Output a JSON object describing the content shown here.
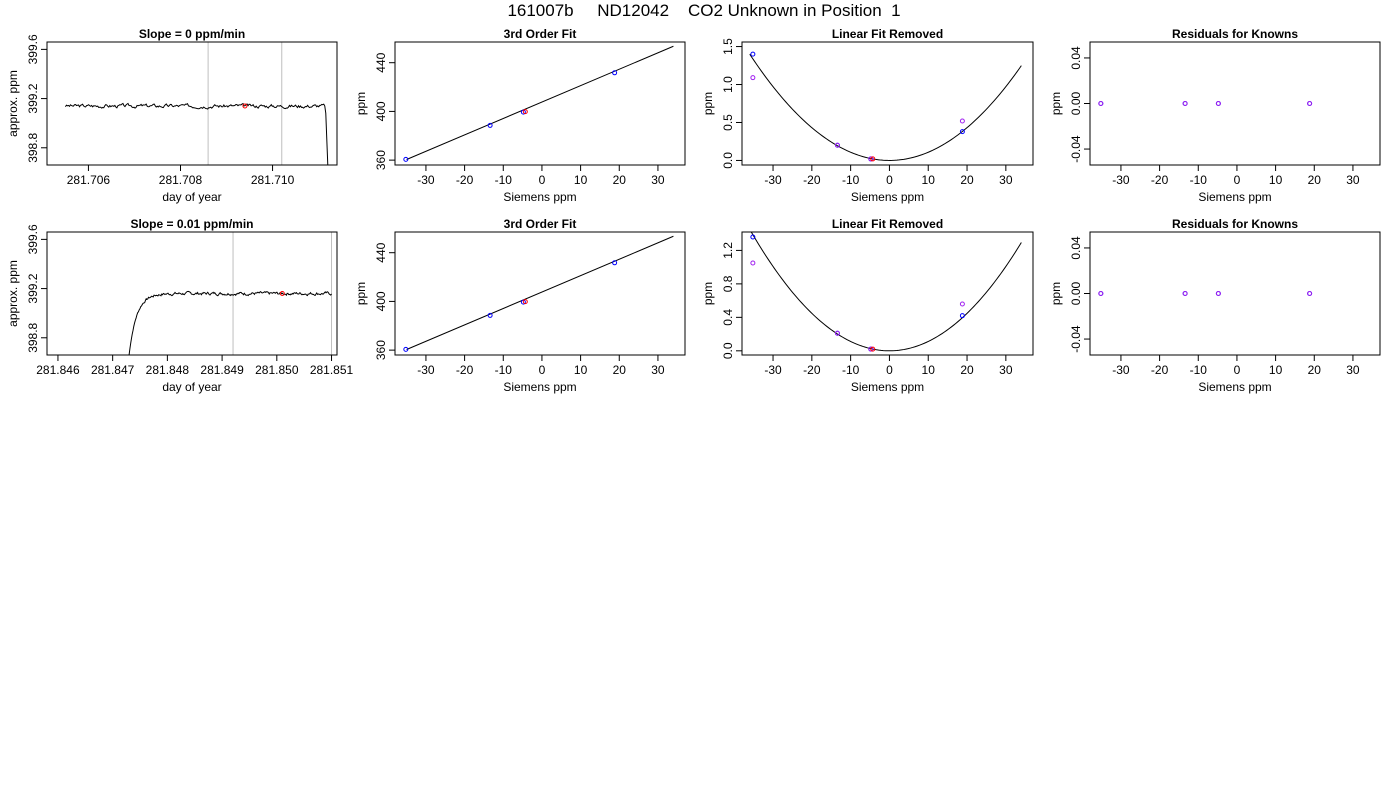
{
  "figure": {
    "title": "161007b     ND12042    CO2 Unknown in Position  1"
  },
  "chart_data": [
    {
      "type": "line",
      "title": "Slope =  0  ppm/min",
      "xlabel": "day of year",
      "ylabel": "approx. ppm",
      "xlim": [
        281.7051,
        281.7114
      ],
      "ylim": [
        398.66,
        399.66
      ],
      "xticks": [
        281.706,
        281.708,
        281.71
      ],
      "xtick_labels": [
        "281.706",
        "281.708",
        "281.710"
      ],
      "yticks": [
        398.8,
        399.2,
        399.6
      ],
      "ytick_labels": [
        "398.8",
        "399.2",
        "399.6"
      ],
      "vlines": [
        281.7086,
        281.7102
      ],
      "series": [
        {
          "name": "",
          "color": "#000000",
          "trace": {
            "start": 281.7055,
            "end": 281.7112,
            "level": 399.14,
            "noise": 0.012,
            "seed": 3,
            "drop_at": 281.71115,
            "drop_to": 398.66
          }
        }
      ],
      "marker": {
        "x": 281.7094,
        "y": 399.14,
        "color": "#ff0000"
      }
    },
    {
      "type": "scatter",
      "title": "3rd Order Fit",
      "xlabel": "Siemens ppm",
      "ylabel": "ppm",
      "xlim": [
        -38,
        37
      ],
      "ylim": [
        356,
        457
      ],
      "xticks": [
        -30,
        -20,
        -10,
        0,
        10,
        20,
        30
      ],
      "xtick_labels": [
        "-30",
        "-20",
        "-10",
        "0",
        "10",
        "20",
        "30"
      ],
      "yticks": [
        360,
        400,
        440
      ],
      "ytick_labels": [
        "360",
        "400",
        "440"
      ],
      "fit_line": {
        "x": [
          -35,
          34
        ],
        "y": [
          360.5,
          453.5
        ]
      },
      "points": [
        {
          "x": -35.2,
          "y": 360.6,
          "color": "#0000ff"
        },
        {
          "x": -13.4,
          "y": 388.5,
          "color": "#0000ff"
        },
        {
          "x": -4.8,
          "y": 399.4,
          "color": "#0000ff"
        },
        {
          "x": 18.8,
          "y": 431.7,
          "color": "#0000ff"
        },
        {
          "x": -4.3,
          "y": 399.8,
          "color": "#ff0000"
        }
      ]
    },
    {
      "type": "scatter",
      "title": "Linear Fit Removed",
      "xlabel": "Siemens ppm",
      "ylabel": "ppm",
      "xlim": [
        -38,
        37
      ],
      "ylim": [
        -0.06,
        1.56
      ],
      "xticks": [
        -30,
        -20,
        -10,
        0,
        10,
        20,
        30
      ],
      "xtick_labels": [
        "-30",
        "-20",
        "-10",
        "0",
        "10",
        "20",
        "30"
      ],
      "yticks": [
        0,
        0.5,
        1,
        1.5
      ],
      "ytick_labels": [
        "0.0",
        "0.5",
        "1.0",
        "1.5"
      ],
      "curve": {
        "a": 0.00108,
        "x0": 0,
        "c": 0.0,
        "from": -36,
        "to": 34
      },
      "points": [
        {
          "x": -35.2,
          "y": 1.4,
          "color": "#0000ff"
        },
        {
          "x": -13.4,
          "y": 0.2,
          "color": "#0000ff"
        },
        {
          "x": -4.8,
          "y": 0.02,
          "color": "#0000ff"
        },
        {
          "x": 18.8,
          "y": 0.38,
          "color": "#0000ff"
        },
        {
          "x": -35.2,
          "y": 1.09,
          "color": "#a020f0"
        },
        {
          "x": -13.4,
          "y": 0.2,
          "color": "#a020f0"
        },
        {
          "x": -4.8,
          "y": 0.02,
          "color": "#a020f0"
        },
        {
          "x": 18.8,
          "y": 0.52,
          "color": "#a020f0"
        },
        {
          "x": -4.3,
          "y": 0.02,
          "color": "#ff0000"
        }
      ]
    },
    {
      "type": "scatter",
      "title": "Residuals for Knowns",
      "xlabel": "Siemens ppm",
      "ylabel": "ppm",
      "xlim": [
        -38,
        37
      ],
      "ylim": [
        -0.054,
        0.054
      ],
      "xticks": [
        -30,
        -20,
        -10,
        0,
        10,
        20,
        30
      ],
      "xtick_labels": [
        "-30",
        "-20",
        "-10",
        "0",
        "10",
        "20",
        "30"
      ],
      "yticks": [
        -0.04,
        0,
        0.04
      ],
      "ytick_labels": [
        "-0.04",
        "0.00",
        "0.04"
      ],
      "points": [
        {
          "x": -35.2,
          "y": 0,
          "color": "#0000ff"
        },
        {
          "x": -13.4,
          "y": 0,
          "color": "#0000ff"
        },
        {
          "x": -4.8,
          "y": 0,
          "color": "#0000ff"
        },
        {
          "x": 18.8,
          "y": 0,
          "color": "#0000ff"
        },
        {
          "x": -35.2,
          "y": 0,
          "color": "#a020f0"
        },
        {
          "x": -13.4,
          "y": 0,
          "color": "#a020f0"
        },
        {
          "x": -4.8,
          "y": 0,
          "color": "#a020f0"
        },
        {
          "x": 18.8,
          "y": 0,
          "color": "#a020f0"
        }
      ]
    },
    {
      "type": "line",
      "title": "Slope =  0.01  ppm/min",
      "xlabel": "day of year",
      "ylabel": "approx. ppm",
      "xlim": [
        281.8458,
        281.8511
      ],
      "ylim": [
        398.66,
        399.66
      ],
      "xticks": [
        281.846,
        281.847,
        281.848,
        281.849,
        281.85,
        281.851
      ],
      "xtick_labels": [
        "281.846",
        "281.847",
        "281.848",
        "281.849",
        "281.850",
        "281.851"
      ],
      "yticks": [
        398.8,
        399.2,
        399.6
      ],
      "ytick_labels": [
        "398.8",
        "399.2",
        "399.6"
      ],
      "vlines": [
        281.8492,
        281.851
      ],
      "series": [
        {
          "name": "",
          "color": "#000000",
          "trace": {
            "start": 281.8473,
            "end": 281.851,
            "level": 399.16,
            "noise": 0.01,
            "seed": 7,
            "rise_from": 398.66,
            "rise_time": 0.00055
          }
        }
      ],
      "marker": {
        "x": 281.8501,
        "y": 399.16,
        "color": "#ff0000"
      }
    },
    {
      "type": "scatter",
      "title": "3rd Order Fit",
      "xlabel": "Siemens ppm",
      "ylabel": "ppm",
      "xlim": [
        -38,
        37
      ],
      "ylim": [
        356,
        457
      ],
      "xticks": [
        -30,
        -20,
        -10,
        0,
        10,
        20,
        30
      ],
      "xtick_labels": [
        "-30",
        "-20",
        "-10",
        "0",
        "10",
        "20",
        "30"
      ],
      "yticks": [
        360,
        400,
        440
      ],
      "ytick_labels": [
        "360",
        "400",
        "440"
      ],
      "fit_line": {
        "x": [
          -35,
          34
        ],
        "y": [
          360.5,
          453.5
        ]
      },
      "points": [
        {
          "x": -35.2,
          "y": 360.6,
          "color": "#0000ff"
        },
        {
          "x": -13.4,
          "y": 388.5,
          "color": "#0000ff"
        },
        {
          "x": -4.8,
          "y": 399.4,
          "color": "#0000ff"
        },
        {
          "x": 18.8,
          "y": 431.7,
          "color": "#0000ff"
        },
        {
          "x": -4.3,
          "y": 399.8,
          "color": "#ff0000"
        }
      ]
    },
    {
      "type": "scatter",
      "title": "Linear Fit Removed",
      "xlabel": "Siemens ppm",
      "ylabel": "ppm",
      "xlim": [
        -38,
        37
      ],
      "ylim": [
        -0.05,
        1.42
      ],
      "xticks": [
        -30,
        -20,
        -10,
        0,
        10,
        20,
        30
      ],
      "xtick_labels": [
        "-30",
        "-20",
        "-10",
        "0",
        "10",
        "20",
        "30"
      ],
      "yticks": [
        0,
        0.4,
        0.8,
        1.2
      ],
      "ytick_labels": [
        "0.0",
        "0.4",
        "0.8",
        "1.2"
      ],
      "curve": {
        "a": 0.00112,
        "x0": 0,
        "c": 0.0,
        "from": -36,
        "to": 34
      },
      "points": [
        {
          "x": -35.2,
          "y": 1.36,
          "color": "#0000ff"
        },
        {
          "x": -13.4,
          "y": 0.21,
          "color": "#0000ff"
        },
        {
          "x": -4.8,
          "y": 0.02,
          "color": "#0000ff"
        },
        {
          "x": 18.8,
          "y": 0.42,
          "color": "#0000ff"
        },
        {
          "x": -35.2,
          "y": 1.05,
          "color": "#a020f0"
        },
        {
          "x": -13.4,
          "y": 0.21,
          "color": "#a020f0"
        },
        {
          "x": -4.8,
          "y": 0.02,
          "color": "#a020f0"
        },
        {
          "x": 18.8,
          "y": 0.56,
          "color": "#a020f0"
        },
        {
          "x": -4.3,
          "y": 0.02,
          "color": "#ff0000"
        }
      ]
    },
    {
      "type": "scatter",
      "title": "Residuals for Knowns",
      "xlabel": "Siemens ppm",
      "ylabel": "ppm",
      "xlim": [
        -38,
        37
      ],
      "ylim": [
        -0.054,
        0.054
      ],
      "xticks": [
        -30,
        -20,
        -10,
        0,
        10,
        20,
        30
      ],
      "xtick_labels": [
        "-30",
        "-20",
        "-10",
        "0",
        "10",
        "20",
        "30"
      ],
      "yticks": [
        -0.04,
        0,
        0.04
      ],
      "ytick_labels": [
        "-0.04",
        "0.00",
        "0.04"
      ],
      "points": [
        {
          "x": -35.2,
          "y": 0,
          "color": "#0000ff"
        },
        {
          "x": -13.4,
          "y": 0,
          "color": "#0000ff"
        },
        {
          "x": -4.8,
          "y": 0,
          "color": "#0000ff"
        },
        {
          "x": 18.8,
          "y": 0,
          "color": "#0000ff"
        },
        {
          "x": -35.2,
          "y": 0,
          "color": "#a020f0"
        },
        {
          "x": -13.4,
          "y": 0,
          "color": "#a020f0"
        },
        {
          "x": -4.8,
          "y": 0,
          "color": "#a020f0"
        },
        {
          "x": 18.8,
          "y": 0,
          "color": "#a020f0"
        }
      ]
    }
  ]
}
